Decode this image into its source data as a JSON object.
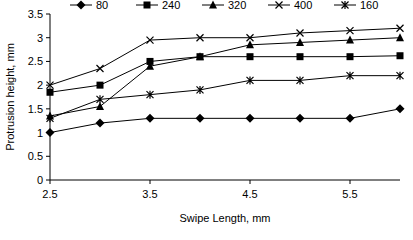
{
  "chart_data": {
    "type": "line",
    "x_label": "Swipe Length, mm",
    "y_label": "Protrusion height, mm",
    "x": [
      2.5,
      3,
      3.5,
      4,
      4.5,
      5,
      5.5,
      6
    ],
    "series": [
      {
        "name": "80",
        "color": "#000000",
        "marker": "diamond",
        "values": [
          1.0,
          1.2,
          1.3,
          1.3,
          1.3,
          1.3,
          1.3,
          1.5
        ]
      },
      {
        "name": "240",
        "color": "#000000",
        "marker": "square",
        "values": [
          1.85,
          2.0,
          2.5,
          2.6,
          2.6,
          2.6,
          2.6,
          2.62
        ]
      },
      {
        "name": "320",
        "color": "#000000",
        "marker": "triangle",
        "values": [
          1.35,
          1.55,
          2.4,
          2.6,
          2.85,
          2.9,
          2.95,
          3.0
        ]
      },
      {
        "name": "400",
        "color": "#000000",
        "marker": "x",
        "values": [
          2.0,
          2.35,
          2.95,
          3.0,
          3.0,
          3.1,
          3.15,
          3.2
        ]
      },
      {
        "name": "160",
        "color": "#000000",
        "marker": "star",
        "values": [
          1.3,
          1.7,
          1.8,
          1.9,
          2.1,
          2.1,
          2.2,
          2.2
        ]
      }
    ],
    "xlim": [
      2.5,
      6
    ],
    "xticks": [
      2.5,
      3.5,
      4.5,
      5.5
    ],
    "ylim": [
      0,
      3.5
    ],
    "yticks": [
      0,
      0.5,
      1,
      1.5,
      2,
      2.5,
      3,
      3.5
    ],
    "grid": false,
    "legend": "top"
  }
}
